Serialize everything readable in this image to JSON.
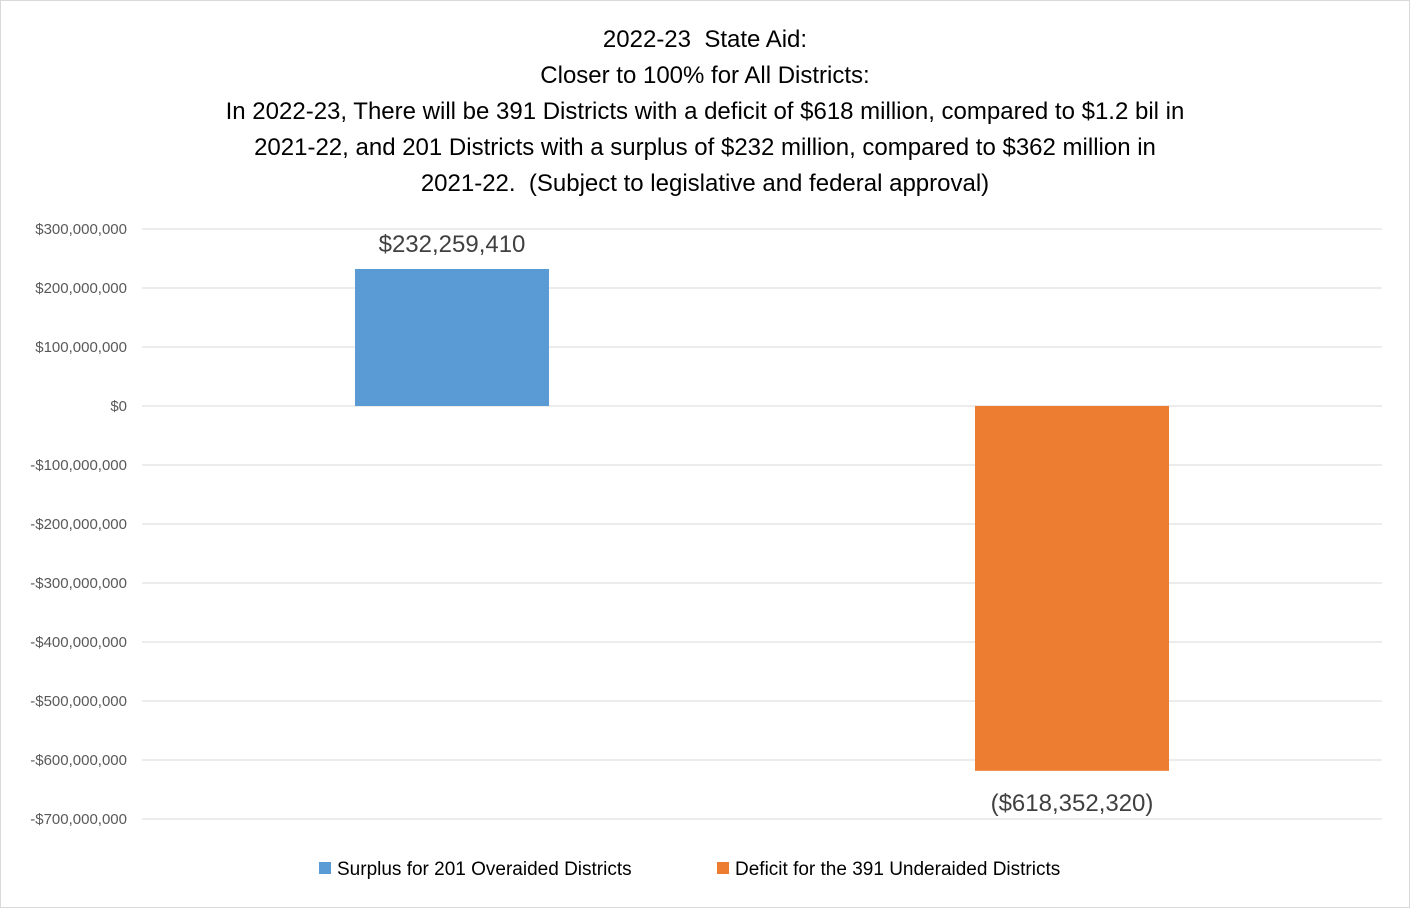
{
  "chart_data": {
    "type": "bar",
    "title_lines": [
      "2022-23  State Aid:",
      "Closer to 100% for All Districts:",
      "In 2022-23, There will be 391 Districts with a deficit of $618 million, compared to $1.2 bil in",
      "2021-22, and 201 Districts with a surplus of $232 million, compared to $362 million in",
      "2021-22.  (Subject to legislative and federal approval)"
    ],
    "xlabel": "",
    "ylabel": "",
    "ylim": [
      -700000000,
      300000000
    ],
    "y_ticks": [
      {
        "value": 300000000,
        "label": "$300,000,000"
      },
      {
        "value": 200000000,
        "label": "$200,000,000"
      },
      {
        "value": 100000000,
        "label": "$100,000,000"
      },
      {
        "value": 0,
        "label": "$0"
      },
      {
        "value": -100000000,
        "label": "-$100,000,000"
      },
      {
        "value": -200000000,
        "label": "-$200,000,000"
      },
      {
        "value": -300000000,
        "label": "-$300,000,000"
      },
      {
        "value": -400000000,
        "label": "-$400,000,000"
      },
      {
        "value": -500000000,
        "label": "-$500,000,000"
      },
      {
        "value": -600000000,
        "label": "-$600,000,000"
      },
      {
        "value": -700000000,
        "label": "-$700,000,000"
      }
    ],
    "grid": true,
    "legend_position": "bottom",
    "series": [
      {
        "name": "Surplus for 201 Overaided Districts",
        "value": 232259410,
        "data_label": "$232,259,410",
        "color": "#5b9bd5"
      },
      {
        "name": "Deficit for the 391 Underaided Districts",
        "value": -618352320,
        "data_label": "($618,352,320)",
        "color": "#ed7d31"
      }
    ]
  }
}
